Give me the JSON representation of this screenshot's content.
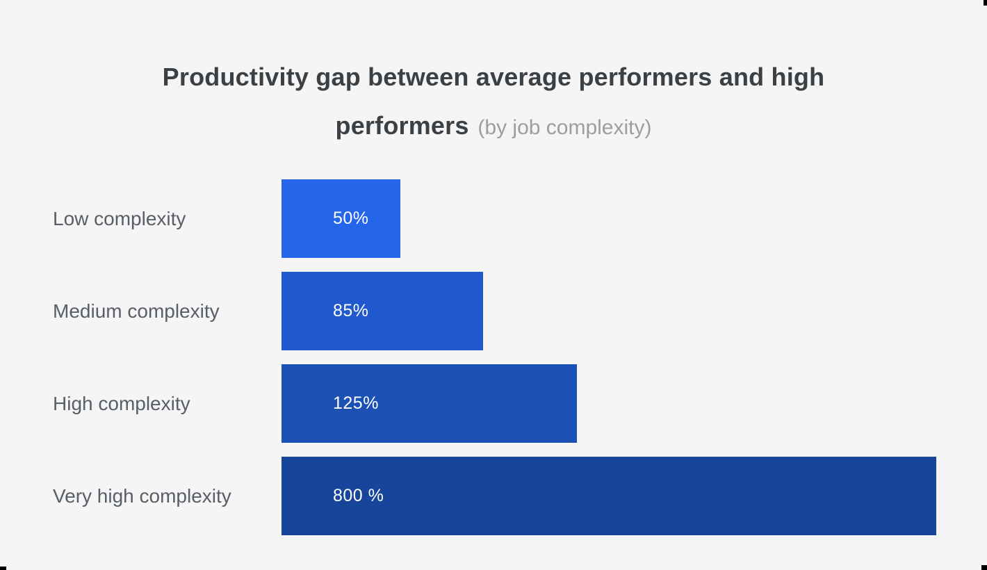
{
  "page": {
    "background_color": "#f5f5f5"
  },
  "header": {
    "title": "Productivity gap between average performers and high performers",
    "subtitle": "(by job complexity)"
  },
  "chart_data": {
    "type": "bar",
    "orientation": "horizontal",
    "title": "Productivity gap between average performers and high performers",
    "subtitle": "(by job complexity)",
    "categories": [
      "Low complexity",
      "Medium complexity",
      "High complexity",
      "Very high complexity"
    ],
    "values": [
      50,
      85,
      125,
      800
    ],
    "value_labels": [
      "50%",
      "85%",
      "125%",
      "800 %"
    ],
    "unit": "percent",
    "bar_colors": [
      "#2565ea",
      "#2058cd",
      "#1b51b5",
      "#174599"
    ],
    "display_width_pct": [
      18.2,
      30.8,
      45.1,
      100
    ],
    "scale_note": "bar lengths not proportional for largest value; 800 % bar clamped to full track width",
    "legend": "none",
    "grid": false,
    "axes": "none",
    "value_label_position": "inside-left"
  },
  "colors": {
    "title_text": "#3b4045",
    "subtitle_text": "#9a9ea3",
    "category_label_text": "#585e68",
    "value_text": "#ffffff",
    "corner_mark": "#000000"
  }
}
